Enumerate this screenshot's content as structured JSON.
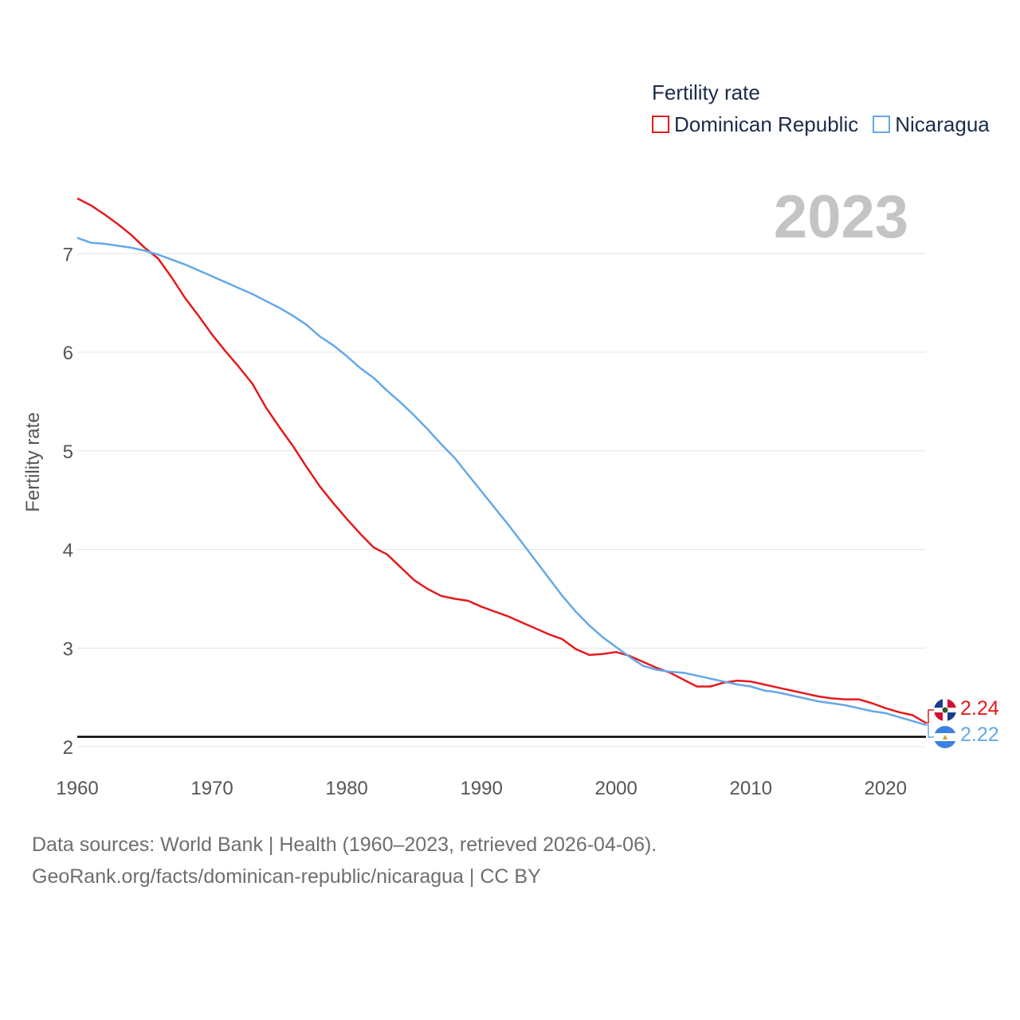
{
  "legend": {
    "title": "Fertility rate",
    "items": [
      {
        "label": "Dominican Republic",
        "color": "#e41a1c"
      },
      {
        "label": "Nicaragua",
        "color": "#64a8e8"
      }
    ]
  },
  "year_label": "2023",
  "end_labels": {
    "dominican": "2.24",
    "nicaragua": "2.22"
  },
  "footer": {
    "line1": "Data sources: World Bank | Health (1960–2023, retrieved 2026-04-06).",
    "line2": "GeoRank.org/facts/dominican-republic/nicaragua | CC BY"
  },
  "chart_data": {
    "type": "line",
    "title": "",
    "xlabel": "",
    "ylabel": "Fertility rate",
    "xlim": [
      1960,
      2023
    ],
    "ylim": [
      2,
      7.6
    ],
    "yticks": [
      2,
      3,
      4,
      5,
      6,
      7
    ],
    "xticks": [
      1960,
      1970,
      1980,
      1990,
      2000,
      2010,
      2020
    ],
    "reference_line": 2.1,
    "x": [
      1960,
      1961,
      1962,
      1963,
      1964,
      1965,
      1966,
      1967,
      1968,
      1969,
      1970,
      1971,
      1972,
      1973,
      1974,
      1975,
      1976,
      1977,
      1978,
      1979,
      1980,
      1981,
      1982,
      1983,
      1984,
      1985,
      1986,
      1987,
      1988,
      1989,
      1990,
      1991,
      1992,
      1993,
      1994,
      1995,
      1996,
      1997,
      1998,
      1999,
      2000,
      2001,
      2002,
      2003,
      2004,
      2005,
      2006,
      2007,
      2008,
      2009,
      2010,
      2011,
      2012,
      2013,
      2014,
      2015,
      2016,
      2017,
      2018,
      2019,
      2020,
      2021,
      2022,
      2023
    ],
    "series": [
      {
        "name": "Dominican Republic",
        "color": "#e41a1c",
        "values": [
          7.56,
          7.49,
          7.4,
          7.3,
          7.19,
          7.06,
          6.95,
          6.76,
          6.55,
          6.37,
          6.18,
          6.01,
          5.85,
          5.68,
          5.44,
          5.24,
          5.05,
          4.84,
          4.64,
          4.47,
          4.31,
          4.16,
          4.02,
          3.95,
          3.82,
          3.69,
          3.6,
          3.53,
          3.5,
          3.48,
          3.42,
          3.37,
          3.32,
          3.26,
          3.2,
          3.14,
          3.09,
          2.99,
          2.93,
          2.94,
          2.96,
          2.92,
          2.86,
          2.8,
          2.75,
          2.68,
          2.61,
          2.61,
          2.65,
          2.67,
          2.66,
          2.63,
          2.6,
          2.57,
          2.54,
          2.51,
          2.49,
          2.48,
          2.48,
          2.44,
          2.39,
          2.35,
          2.32,
          2.24
        ]
      },
      {
        "name": "Nicaragua",
        "color": "#64a8e8",
        "values": [
          7.16,
          7.11,
          7.1,
          7.08,
          7.06,
          7.03,
          6.99,
          6.94,
          6.89,
          6.83,
          6.77,
          6.71,
          6.65,
          6.59,
          6.52,
          6.45,
          6.37,
          6.28,
          6.16,
          6.07,
          5.96,
          5.84,
          5.74,
          5.61,
          5.49,
          5.36,
          5.22,
          5.07,
          4.93,
          4.76,
          4.59,
          4.42,
          4.25,
          4.07,
          3.89,
          3.71,
          3.53,
          3.37,
          3.23,
          3.11,
          3.01,
          2.91,
          2.82,
          2.78,
          2.76,
          2.75,
          2.72,
          2.69,
          2.66,
          2.63,
          2.61,
          2.57,
          2.55,
          2.52,
          2.49,
          2.46,
          2.44,
          2.42,
          2.39,
          2.36,
          2.34,
          2.3,
          2.26,
          2.22
        ]
      }
    ]
  }
}
